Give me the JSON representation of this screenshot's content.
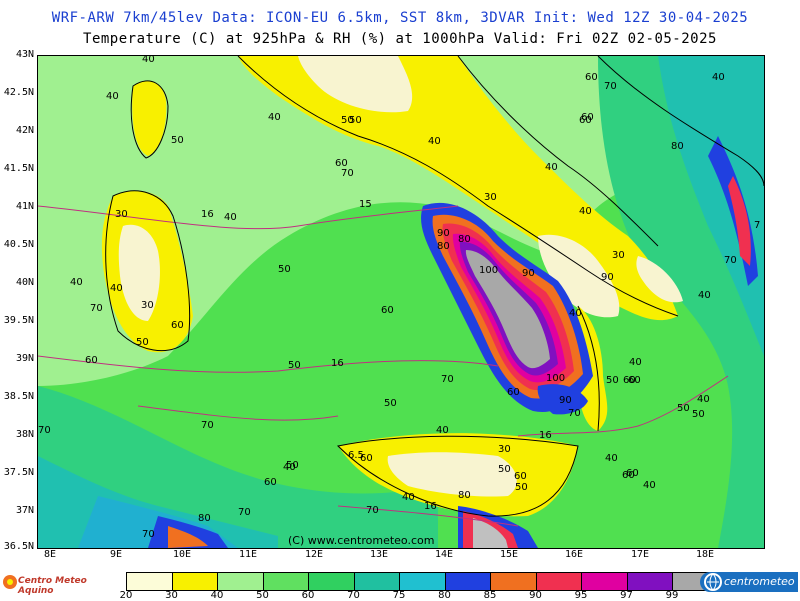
{
  "header": {
    "title1": "WRF-ARW 7km/45lev  Data: ICON-EU 6.5km, SST 8km, 3DVAR  Init: Wed 12Z 30-04-2025",
    "title2": "Temperature (C) at 925hPa & RH (%) at 1000hPa  Valid: Fri 02Z 02-05-2025"
  },
  "axes": {
    "lat_labels": [
      "43N",
      "42.5N",
      "42N",
      "41.5N",
      "41N",
      "40.5N",
      "40N",
      "39.5N",
      "39N",
      "38.5N",
      "38N",
      "37.5N",
      "37N",
      "36.5N"
    ],
    "lon_labels": [
      "8E",
      "9E",
      "10E",
      "11E",
      "12E",
      "13E",
      "14E",
      "15E",
      "16E",
      "17E",
      "18E"
    ]
  },
  "map": {
    "credit": "(C) www.centrometeo.com",
    "rh_labels": [
      "40",
      "40",
      "50",
      "30",
      "16",
      "40",
      "40",
      "40",
      "70",
      "30",
      "60",
      "50",
      "60",
      "50",
      "70",
      "60",
      "50",
      "40",
      "40",
      "15",
      "90",
      "80",
      "30",
      "100",
      "90",
      "40",
      "90",
      "30",
      "40",
      "70",
      "40",
      "60",
      "70",
      "40",
      "60",
      "50",
      "16",
      "60",
      "60",
      "70",
      "50",
      "100",
      "90",
      "60",
      "70",
      "60",
      "50",
      "40",
      "70",
      "16",
      "6.5",
      "60",
      "40",
      "30",
      "50",
      "60",
      "40",
      "40",
      "50",
      "50",
      "60",
      "40",
      "80",
      "16",
      "80",
      "70",
      "70",
      "70",
      "80",
      "60",
      "50",
      "40",
      "50",
      "40",
      "60",
      "7",
      "70",
      "40",
      "80",
      "50",
      "60"
    ],
    "colors": {
      "land_dry": "#f8f4d0",
      "yellow": "#f8f000",
      "light_green": "#a0f090",
      "green": "#50e050",
      "mid_green": "#30d080",
      "teal": "#20c0b0",
      "cyan": "#20b0d0",
      "blue": "#2040e0",
      "orange": "#f07020",
      "red": "#f03050",
      "magenta": "#e000a0",
      "purple": "#8010c0",
      "gray": "#a8a8a8"
    }
  },
  "colorbar": {
    "ticks": [
      "20",
      "30",
      "40",
      "50",
      "60",
      "70",
      "75",
      "80",
      "85",
      "90",
      "95",
      "97",
      "99"
    ],
    "colors": [
      "#fcfcd8",
      "#f8f000",
      "#a0f090",
      "#60e060",
      "#30d060",
      "#20c0a0",
      "#20c0d0",
      "#2040e0",
      "#f07020",
      "#f03050",
      "#e000a0",
      "#8010c0",
      "#a8a8a8"
    ]
  },
  "logos": {
    "left": "Centro Meteo Aquino",
    "right": "centrometeo"
  }
}
